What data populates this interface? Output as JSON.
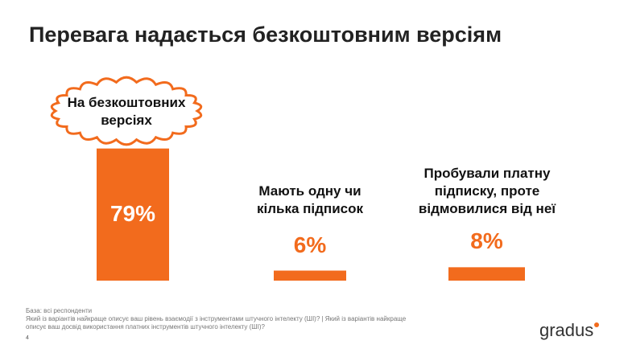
{
  "chart_data": {
    "type": "bar",
    "title": "Перевага надається безкоштовним версіям",
    "categories": [
      "На безкоштовних версіях",
      "Мають одну чи кілька підписок",
      "Пробували платну підписку, проте відмовилися від неї"
    ],
    "values": [
      79,
      6,
      8
    ],
    "value_labels": [
      "79%",
      "6%",
      "8%"
    ],
    "color": "#f26b1d"
  },
  "footnote": {
    "base": "База: всі респонденти",
    "question": "Який із варіантів найкраще описує ваш рівень взаємодії з інструментами штучного інтелекту (ШІ)? | Який із варіантів найкраще описує ваш досвід використання платних інструментів штучного інтелекту (ШІ)?"
  },
  "page_number": "4",
  "logo": "gradus"
}
